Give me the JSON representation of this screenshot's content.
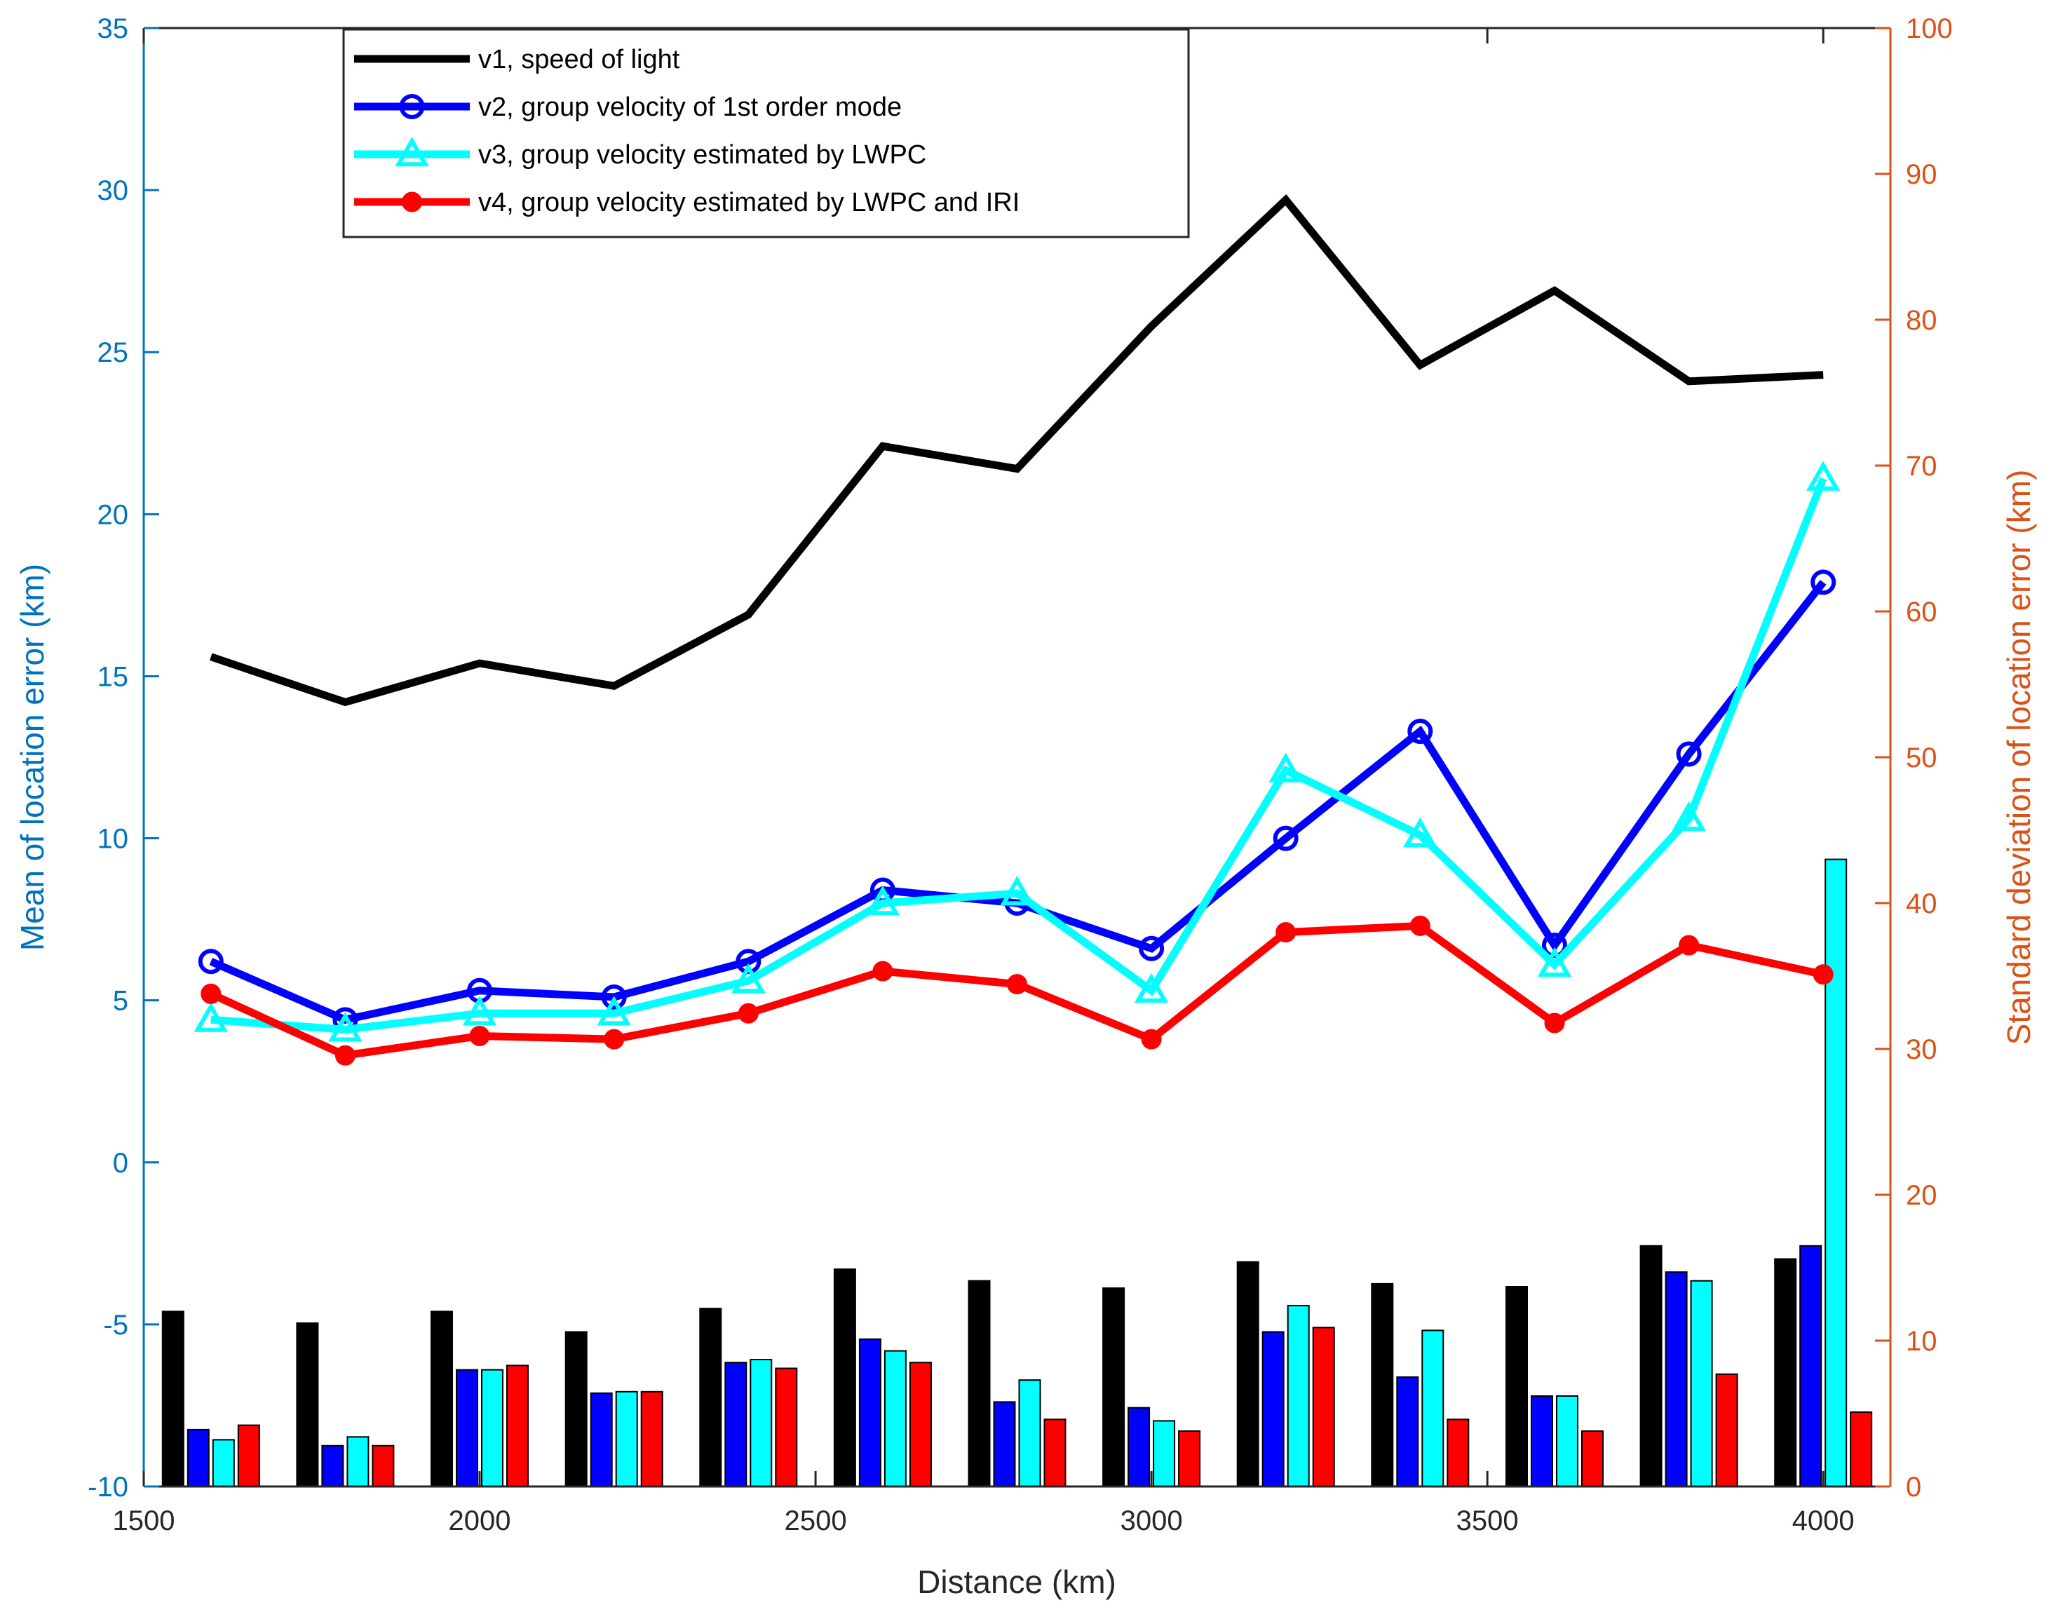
{
  "chart_data": {
    "type": "line",
    "combined_with": "bar",
    "xlabel": "Distance (km)",
    "ylabel_left": "Mean of location error (km)",
    "ylabel_right": "Standard deviation of location error (km)",
    "xlim": [
      1500,
      4100
    ],
    "ylim_left": [
      -10,
      35
    ],
    "ylim_right": [
      0,
      100
    ],
    "xticks": [
      1500,
      2000,
      2500,
      3000,
      3500,
      4000
    ],
    "yticks_left": [
      -10,
      -5,
      0,
      5,
      10,
      15,
      20,
      25,
      30,
      35
    ],
    "yticks_right": [
      0,
      10,
      20,
      30,
      40,
      50,
      60,
      70,
      80,
      90,
      100
    ],
    "x": [
      1600,
      1800,
      2000,
      2200,
      2400,
      2600,
      2800,
      3000,
      3200,
      3400,
      3600,
      3800,
      4000
    ],
    "series": [
      {
        "name": "v1, speed of light",
        "color": "#000000",
        "marker": "none",
        "mean": [
          15.6,
          14.2,
          15.4,
          14.7,
          16.9,
          22.1,
          21.4,
          25.8,
          29.7,
          24.6,
          26.9,
          24.1,
          24.3
        ],
        "std": [
          12.0,
          11.2,
          12.0,
          10.6,
          12.2,
          14.9,
          14.1,
          13.6,
          15.4,
          13.9,
          13.7,
          16.5,
          15.6
        ]
      },
      {
        "name": "v2, group velocity of 1st order mode",
        "color": "#0000ff",
        "marker": "circle",
        "mean": [
          6.2,
          4.4,
          5.3,
          5.1,
          6.2,
          8.4,
          8.0,
          6.6,
          10.0,
          13.3,
          6.7,
          12.6,
          17.9
        ],
        "std": [
          3.9,
          2.8,
          8.0,
          6.4,
          8.5,
          10.1,
          5.8,
          5.4,
          10.6,
          7.5,
          6.2,
          14.7,
          16.5
        ]
      },
      {
        "name": "v3, group velocity estimated by LWPC",
        "color": "#00ffff",
        "marker": "triangle",
        "mean": [
          4.4,
          4.1,
          4.6,
          4.6,
          5.6,
          8.0,
          8.3,
          5.3,
          12.1,
          10.1,
          6.1,
          10.6,
          21.1
        ],
        "std": [
          3.2,
          3.4,
          8.0,
          6.5,
          8.7,
          9.3,
          7.3,
          4.5,
          12.4,
          10.7,
          6.2,
          14.1,
          43.0
        ]
      },
      {
        "name": "v4, group velocity estimated by LWPC and IRI",
        "color": "#ff0000",
        "marker": "filled-circle",
        "mean": [
          5.2,
          3.3,
          3.9,
          3.8,
          4.6,
          5.9,
          5.5,
          3.8,
          7.1,
          7.3,
          4.3,
          6.7,
          5.8
        ],
        "std": [
          4.2,
          2.8,
          8.3,
          6.5,
          8.1,
          8.5,
          4.6,
          3.8,
          10.9,
          4.6,
          3.8,
          7.7,
          5.1
        ]
      }
    ]
  }
}
